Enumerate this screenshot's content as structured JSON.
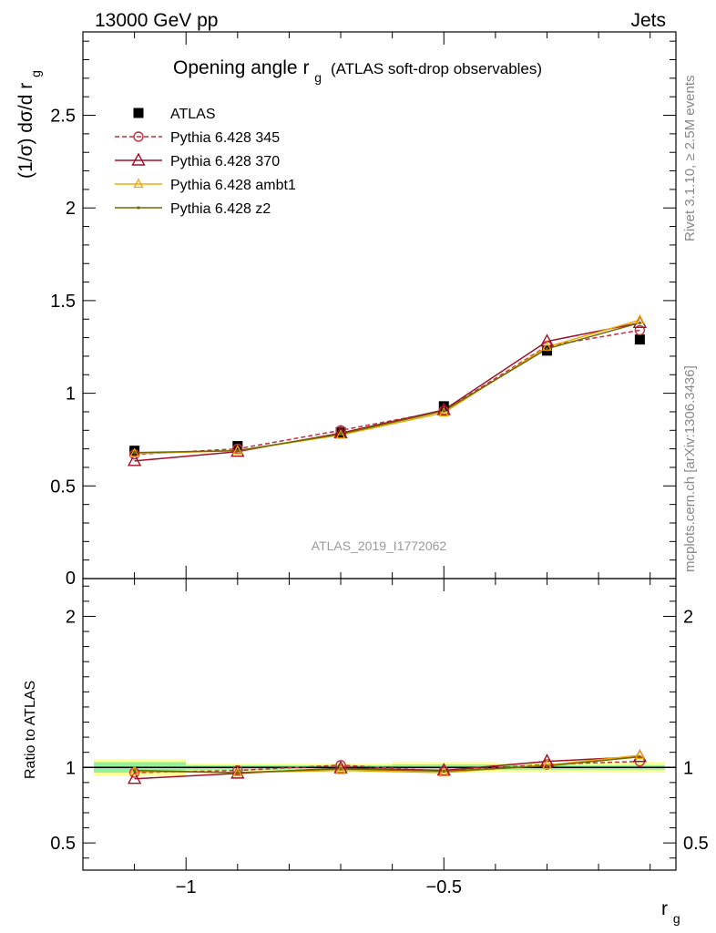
{
  "header": {
    "left": "13000 GeV pp",
    "right": "Jets"
  },
  "side_labels": {
    "rivet": "Rivet 3.1.10, ≥ 2.5M events",
    "mcplots": "mcplots.cern.ch [arXiv:1306.3436]"
  },
  "watermark": "ATLAS_2019_I1772062",
  "chart_data": [
    {
      "type": "line",
      "title": "Opening angle r",
      "title_sub": "g",
      "title_suffix": "(ATLAS soft-drop observables)",
      "ylabel": "(1/σ) dσ/d r",
      "ylabel_sub": "g",
      "xlabel": "r",
      "xlabel_sub": "g",
      "xlim": [
        -1.2,
        -0.05
      ],
      "ylim": [
        0,
        2.95
      ],
      "xticks": [
        -1,
        -0.5
      ],
      "xtick_labels": [
        "−1",
        "−0.5"
      ],
      "yticks": [
        0.5,
        1,
        1.5,
        2,
        2.5
      ],
      "ytick_labels": [
        "0.5",
        "1",
        "1.5",
        "2",
        "2.5"
      ],
      "y_zero_label": "0",
      "legend_position": "top-left",
      "x": [
        -1.1,
        -0.9,
        -0.7,
        -0.5,
        -0.3,
        -0.12
      ],
      "series": [
        {
          "name": "ATLAS",
          "color": "#000000",
          "marker": "square",
          "values": [
            0.69,
            0.715,
            0.79,
            0.93,
            1.23,
            1.29
          ]
        },
        {
          "name": "Pythia 6.428 345",
          "color": "#c03040",
          "marker": "open-circle",
          "dashed": true,
          "values": [
            0.67,
            0.7,
            0.8,
            0.905,
            1.255,
            1.34
          ]
        },
        {
          "name": "Pythia 6.428 370",
          "color": "#a0102a",
          "marker": "open-triangle",
          "values": [
            0.635,
            0.685,
            0.785,
            0.91,
            1.28,
            1.38
          ]
        },
        {
          "name": "Pythia 6.428 ambt1",
          "color": "#f0a800",
          "marker": "open-triangle-small",
          "values": [
            0.675,
            0.69,
            0.775,
            0.895,
            1.25,
            1.395
          ]
        },
        {
          "name": "Pythia 6.428 z2",
          "color": "#6b6b00",
          "marker": "dot",
          "values": [
            0.68,
            0.69,
            0.78,
            0.905,
            1.24,
            1.38
          ]
        }
      ]
    },
    {
      "type": "line",
      "ylabel": "Ratio to ATLAS",
      "ylim": [
        0.32,
        2.25
      ],
      "yticks": [
        0.5,
        1,
        2
      ],
      "ytick_labels": [
        "0.5",
        "1",
        "2"
      ],
      "x": [
        -1.1,
        -0.9,
        -0.7,
        -0.5,
        -0.3,
        -0.12
      ],
      "bands": {
        "bin_edges": [
          -1.2,
          -1.0,
          -0.8,
          -0.6,
          -0.4,
          -0.2,
          -0.05
        ],
        "yellow": [
          0.055,
          0.025,
          0.025,
          0.035,
          0.03,
          0.035
        ],
        "green": [
          0.035,
          0.015,
          0.015,
          0.02,
          0.015,
          0.015
        ]
      },
      "series": [
        {
          "name": "Pythia 6.428 345",
          "values": [
            0.965,
            0.98,
            1.015,
            0.975,
            1.02,
            1.04
          ]
        },
        {
          "name": "Pythia 6.428 370",
          "values": [
            0.925,
            0.96,
            0.995,
            0.98,
            1.04,
            1.07
          ]
        },
        {
          "name": "Pythia 6.428 ambt1",
          "values": [
            0.975,
            0.965,
            0.98,
            0.965,
            1.015,
            1.08
          ]
        },
        {
          "name": "Pythia 6.428 z2",
          "values": [
            0.98,
            0.965,
            0.99,
            0.975,
            1.01,
            1.07
          ]
        }
      ]
    }
  ]
}
